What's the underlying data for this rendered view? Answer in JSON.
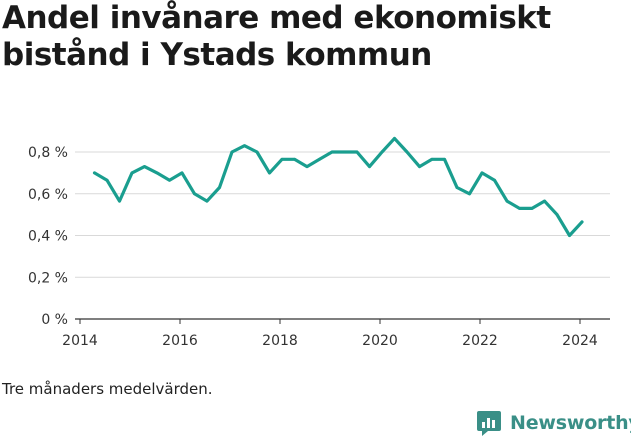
{
  "title_lines": [
    "Andel invånare med ekonomiskt",
    "bistånd i Ystads kommun"
  ],
  "note": "Tre månaders medelvärden.",
  "brand": {
    "name": "Newsworthy",
    "icon": "newsworthy-logo-icon",
    "color": "#3a8f87"
  },
  "chart_data": {
    "type": "line",
    "title": "Andel invånare med ekonomiskt bistånd i Ystads kommun",
    "xlabel": "",
    "ylabel": "",
    "xlim": [
      2013.9,
      2024.6
    ],
    "ylim": [
      0,
      0.8
    ],
    "x_ticks": [
      2014,
      2016,
      2018,
      2020,
      2022,
      2024
    ],
    "x_tick_labels": [
      "2014",
      "2016",
      "2018",
      "2020",
      "2022",
      "2024"
    ],
    "y_ticks": [
      0,
      0.2,
      0.4,
      0.6,
      0.8
    ],
    "y_tick_labels": [
      "0 %",
      "0,2 %",
      "0,4 %",
      "0,6 %",
      "0,8 %"
    ],
    "grid": "horizontal",
    "line_color": "#1a9e8f",
    "series": [
      {
        "x": [
          2014.29,
          2014.54,
          2014.79,
          2015.04,
          2015.29,
          2015.54,
          2015.79,
          2016.04,
          2016.29,
          2016.54,
          2016.79,
          2017.04,
          2017.29,
          2017.54,
          2017.79,
          2018.04,
          2018.29,
          2018.54,
          2018.79,
          2019.04,
          2019.29,
          2019.54,
          2019.79,
          2020.04,
          2020.29,
          2020.54,
          2020.79,
          2021.04,
          2021.29,
          2021.54,
          2021.79,
          2022.04,
          2022.29,
          2022.54,
          2022.79,
          2023.04,
          2023.29,
          2023.54,
          2023.79,
          2024.04
        ],
        "values": [
          0.7,
          0.665,
          0.565,
          0.7,
          0.73,
          0.7,
          0.665,
          0.7,
          0.6,
          0.565,
          0.63,
          0.8,
          0.83,
          0.8,
          0.7,
          0.765,
          0.765,
          0.73,
          0.765,
          0.8,
          0.8,
          0.8,
          0.73,
          0.8,
          0.865,
          0.8,
          0.73,
          0.765,
          0.765,
          0.63,
          0.6,
          0.7,
          0.665,
          0.565,
          0.53,
          0.53,
          0.565,
          0.5,
          0.4,
          0.465
        ]
      }
    ]
  }
}
